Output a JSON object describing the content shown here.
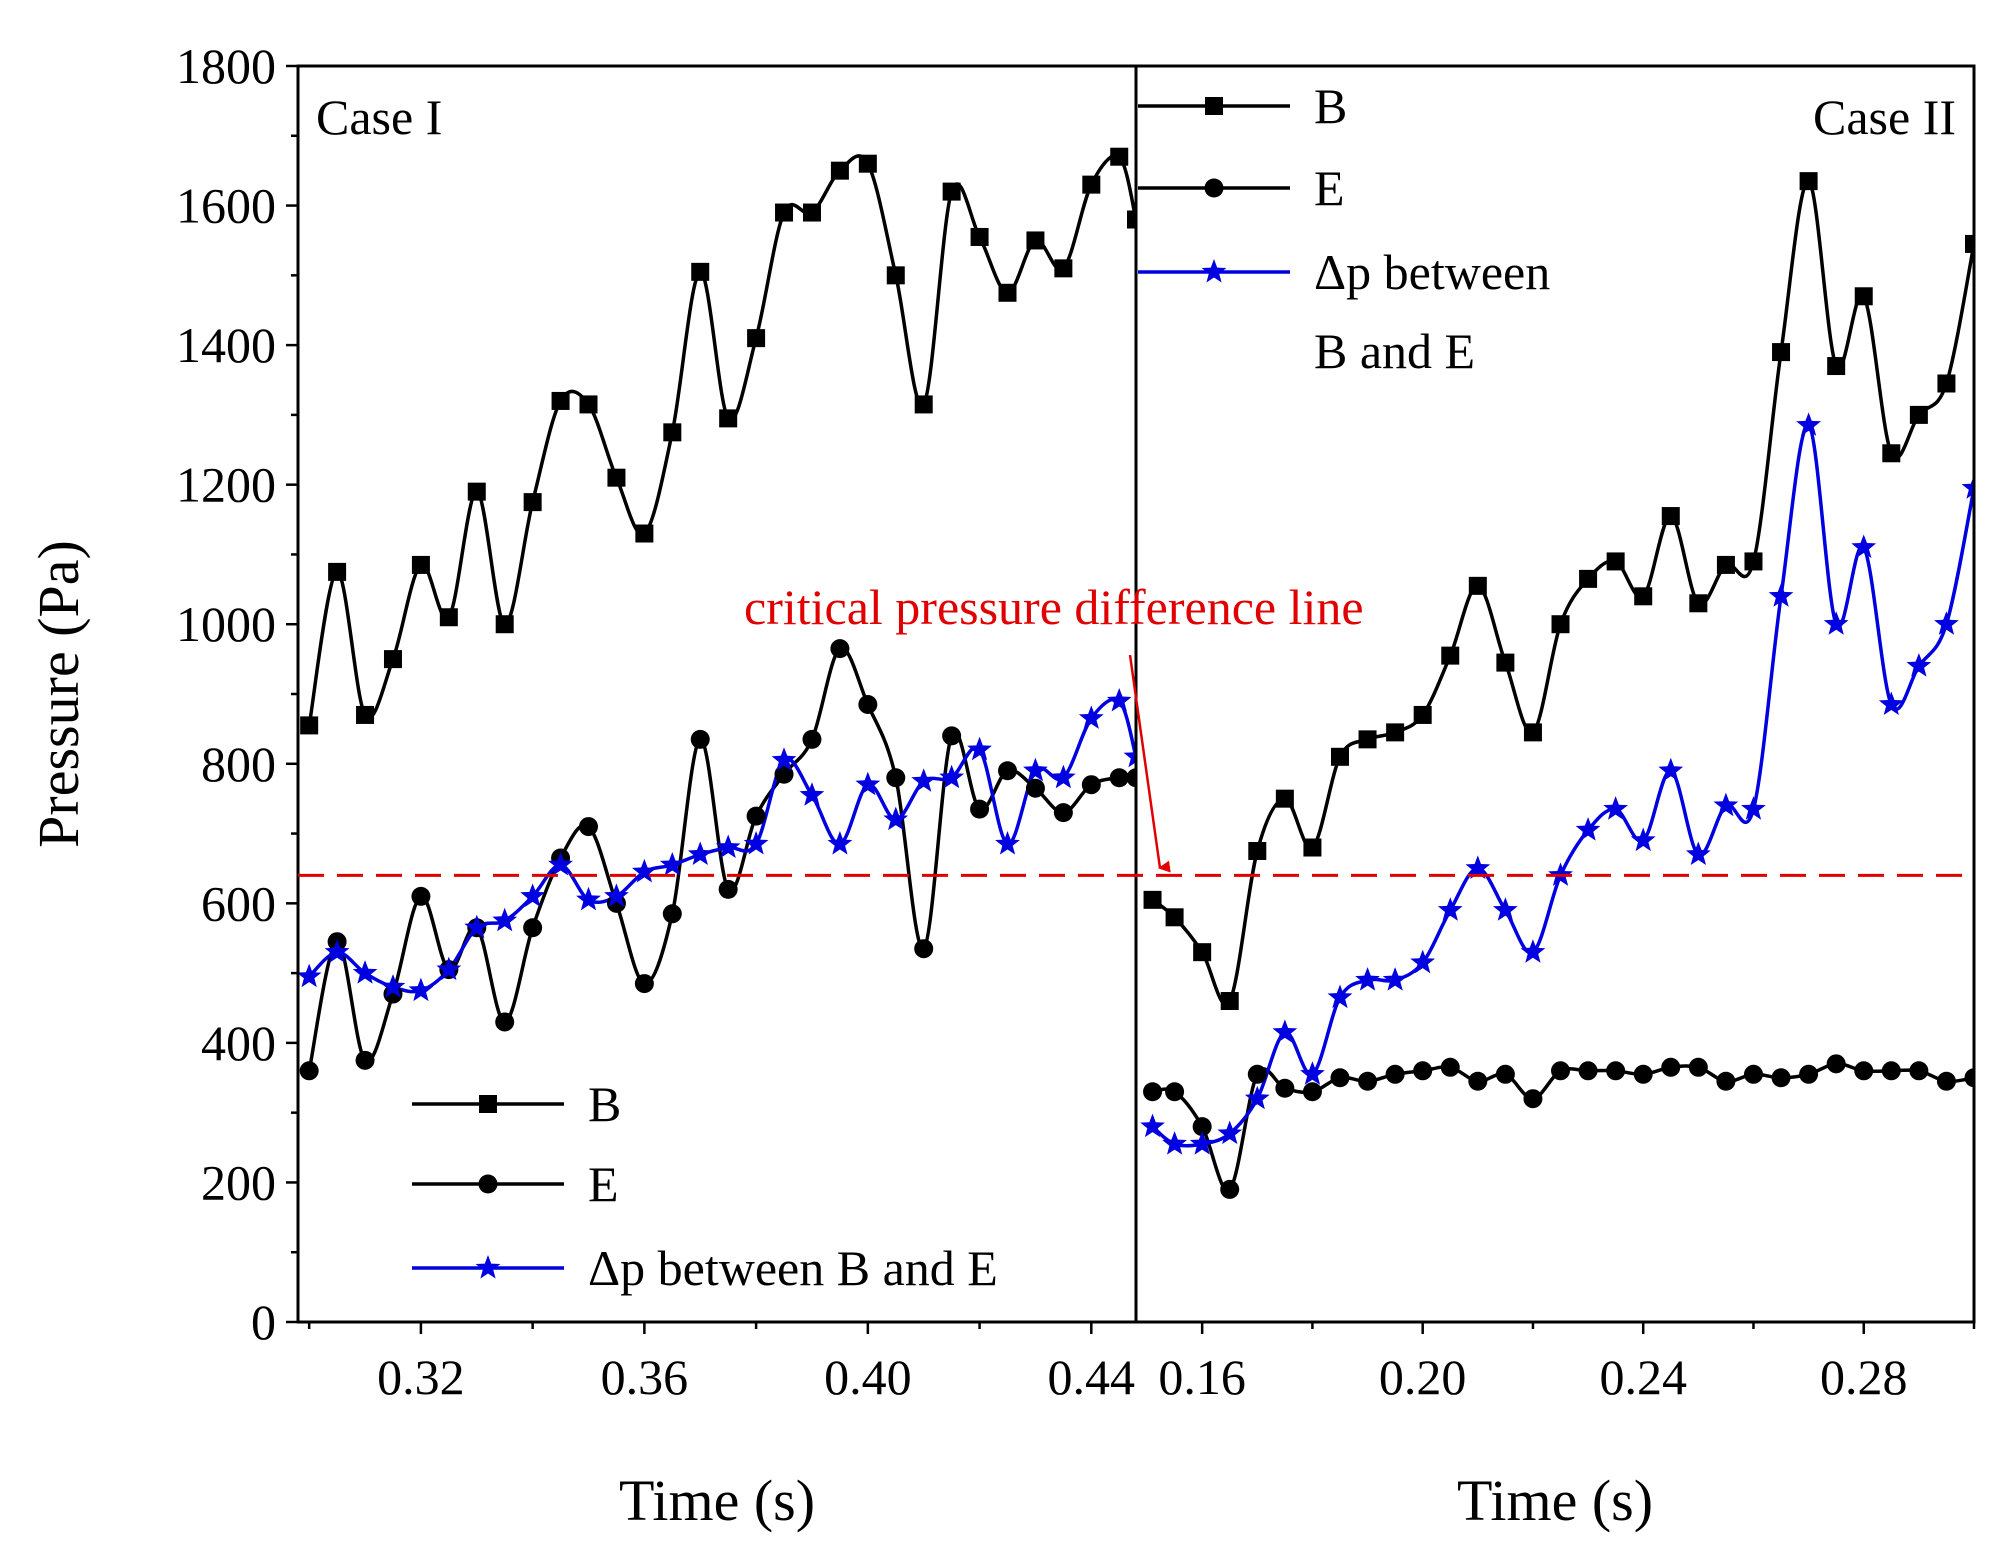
{
  "chart_data": {
    "type": "line",
    "ylabel": "Pressure (Pa)",
    "ylim": [
      0,
      1800
    ],
    "y_ticks": [
      "0",
      "200",
      "400",
      "600",
      "800",
      "1000",
      "1200",
      "1400",
      "1600",
      "1800"
    ],
    "colors": {
      "B": "#000000",
      "E": "#000000",
      "dp": "#0000e0",
      "critical": "#e00000",
      "annotation": "#e00000"
    },
    "critical_line": {
      "value": 640,
      "label": "critical pressure difference line",
      "style": "dashed"
    },
    "panels": [
      {
        "name": "Case I",
        "xlabel": "Time (s)",
        "xlim": [
          0.298,
          0.448
        ],
        "x_ticks": [
          "0.32",
          "0.36",
          "0.40",
          "0.44"
        ],
        "x_tick_values": [
          0.32,
          0.36,
          0.4,
          0.44
        ],
        "legend": {
          "placement": "bottom-left",
          "entries": [
            "B",
            "E",
            "Δp between B and E"
          ]
        },
        "series": [
          {
            "name": "B",
            "marker": "square",
            "color": "#000000",
            "points": [
              [
                0.3,
                855
              ],
              [
                0.305,
                1075
              ],
              [
                0.31,
                870
              ],
              [
                0.315,
                950
              ],
              [
                0.32,
                1085
              ],
              [
                0.325,
                1010
              ],
              [
                0.33,
                1190
              ],
              [
                0.335,
                1000
              ],
              [
                0.34,
                1175
              ],
              [
                0.345,
                1320
              ],
              [
                0.35,
                1315
              ],
              [
                0.355,
                1210
              ],
              [
                0.36,
                1130
              ],
              [
                0.365,
                1275
              ],
              [
                0.37,
                1505
              ],
              [
                0.375,
                1295
              ],
              [
                0.38,
                1410
              ],
              [
                0.385,
                1590
              ],
              [
                0.39,
                1590
              ],
              [
                0.395,
                1650
              ],
              [
                0.4,
                1660
              ],
              [
                0.405,
                1500
              ],
              [
                0.41,
                1315
              ],
              [
                0.415,
                1620
              ],
              [
                0.42,
                1555
              ],
              [
                0.425,
                1475
              ],
              [
                0.43,
                1550
              ],
              [
                0.435,
                1510
              ],
              [
                0.44,
                1630
              ],
              [
                0.445,
                1670
              ],
              [
                0.448,
                1580
              ]
            ]
          },
          {
            "name": "E",
            "marker": "circle",
            "color": "#000000",
            "points": [
              [
                0.3,
                360
              ],
              [
                0.305,
                545
              ],
              [
                0.31,
                375
              ],
              [
                0.315,
                470
              ],
              [
                0.32,
                610
              ],
              [
                0.325,
                505
              ],
              [
                0.33,
                565
              ],
              [
                0.335,
                430
              ],
              [
                0.34,
                565
              ],
              [
                0.345,
                665
              ],
              [
                0.35,
                710
              ],
              [
                0.355,
                600
              ],
              [
                0.36,
                485
              ],
              [
                0.365,
                585
              ],
              [
                0.37,
                835
              ],
              [
                0.375,
                620
              ],
              [
                0.38,
                725
              ],
              [
                0.385,
                785
              ],
              [
                0.39,
                835
              ],
              [
                0.395,
                965
              ],
              [
                0.4,
                885
              ],
              [
                0.405,
                780
              ],
              [
                0.41,
                535
              ],
              [
                0.415,
                840
              ],
              [
                0.42,
                735
              ],
              [
                0.425,
                790
              ],
              [
                0.43,
                765
              ],
              [
                0.435,
                730
              ],
              [
                0.44,
                770
              ],
              [
                0.445,
                780
              ],
              [
                0.448,
                780
              ]
            ]
          },
          {
            "name": "Δp between B and E",
            "marker": "star",
            "color": "#0000e0",
            "points": [
              [
                0.3,
                495
              ],
              [
                0.305,
                530
              ],
              [
                0.31,
                500
              ],
              [
                0.315,
                480
              ],
              [
                0.32,
                475
              ],
              [
                0.325,
                505
              ],
              [
                0.33,
                565
              ],
              [
                0.335,
                575
              ],
              [
                0.34,
                610
              ],
              [
                0.345,
                655
              ],
              [
                0.35,
                605
              ],
              [
                0.355,
                610
              ],
              [
                0.36,
                645
              ],
              [
                0.365,
                655
              ],
              [
                0.37,
                670
              ],
              [
                0.375,
                680
              ],
              [
                0.38,
                685
              ],
              [
                0.385,
                805
              ],
              [
                0.39,
                755
              ],
              [
                0.395,
                685
              ],
              [
                0.4,
                770
              ],
              [
                0.405,
                720
              ],
              [
                0.41,
                775
              ],
              [
                0.415,
                780
              ],
              [
                0.42,
                820
              ],
              [
                0.425,
                685
              ],
              [
                0.43,
                790
              ],
              [
                0.435,
                780
              ],
              [
                0.44,
                865
              ],
              [
                0.445,
                890
              ],
              [
                0.448,
                810
              ]
            ]
          }
        ]
      },
      {
        "name": "Case II",
        "xlabel": "Time (s)",
        "xlim": [
          0.148,
          0.3
        ],
        "x_ticks": [
          "0.16",
          "0.20",
          "0.24",
          "0.28"
        ],
        "x_tick_values": [
          0.16,
          0.2,
          0.24,
          0.28
        ],
        "legend": {
          "placement": "top-left",
          "entries": [
            "B",
            "E",
            "Δp between",
            "B and E"
          ]
        },
        "series": [
          {
            "name": "B",
            "marker": "square",
            "color": "#000000",
            "points": [
              [
                0.151,
                605
              ],
              [
                0.155,
                580
              ],
              [
                0.16,
                530
              ],
              [
                0.165,
                460
              ],
              [
                0.17,
                675
              ],
              [
                0.175,
                750
              ],
              [
                0.18,
                680
              ],
              [
                0.185,
                810
              ],
              [
                0.19,
                835
              ],
              [
                0.195,
                845
              ],
              [
                0.2,
                870
              ],
              [
                0.205,
                955
              ],
              [
                0.21,
                1055
              ],
              [
                0.215,
                945
              ],
              [
                0.22,
                845
              ],
              [
                0.225,
                1000
              ],
              [
                0.23,
                1065
              ],
              [
                0.235,
                1090
              ],
              [
                0.24,
                1040
              ],
              [
                0.245,
                1155
              ],
              [
                0.25,
                1030
              ],
              [
                0.255,
                1085
              ],
              [
                0.26,
                1090
              ],
              [
                0.265,
                1390
              ],
              [
                0.27,
                1635
              ],
              [
                0.275,
                1370
              ],
              [
                0.28,
                1470
              ],
              [
                0.285,
                1245
              ],
              [
                0.29,
                1300
              ],
              [
                0.295,
                1345
              ],
              [
                0.3,
                1545
              ]
            ]
          },
          {
            "name": "E",
            "marker": "circle",
            "color": "#000000",
            "points": [
              [
                0.151,
                330
              ],
              [
                0.155,
                330
              ],
              [
                0.16,
                280
              ],
              [
                0.165,
                190
              ],
              [
                0.17,
                355
              ],
              [
                0.175,
                335
              ],
              [
                0.18,
                330
              ],
              [
                0.185,
                350
              ],
              [
                0.19,
                345
              ],
              [
                0.195,
                355
              ],
              [
                0.2,
                360
              ],
              [
                0.205,
                365
              ],
              [
                0.21,
                345
              ],
              [
                0.215,
                355
              ],
              [
                0.22,
                320
              ],
              [
                0.225,
                360
              ],
              [
                0.23,
                360
              ],
              [
                0.235,
                360
              ],
              [
                0.24,
                355
              ],
              [
                0.245,
                365
              ],
              [
                0.25,
                365
              ],
              [
                0.255,
                345
              ],
              [
                0.26,
                355
              ],
              [
                0.265,
                350
              ],
              [
                0.27,
                355
              ],
              [
                0.275,
                370
              ],
              [
                0.28,
                360
              ],
              [
                0.285,
                360
              ],
              [
                0.29,
                360
              ],
              [
                0.295,
                345
              ],
              [
                0.3,
                350
              ]
            ]
          },
          {
            "name": "Δp between B and E",
            "marker": "star",
            "color": "#0000e0",
            "points": [
              [
                0.151,
                280
              ],
              [
                0.155,
                255
              ],
              [
                0.16,
                255
              ],
              [
                0.165,
                270
              ],
              [
                0.17,
                320
              ],
              [
                0.175,
                415
              ],
              [
                0.18,
                355
              ],
              [
                0.185,
                465
              ],
              [
                0.19,
                490
              ],
              [
                0.195,
                490
              ],
              [
                0.2,
                515
              ],
              [
                0.205,
                590
              ],
              [
                0.21,
                650
              ],
              [
                0.215,
                590
              ],
              [
                0.22,
                530
              ],
              [
                0.225,
                640
              ],
              [
                0.23,
                705
              ],
              [
                0.235,
                735
              ],
              [
                0.24,
                690
              ],
              [
                0.245,
                790
              ],
              [
                0.25,
                670
              ],
              [
                0.255,
                740
              ],
              [
                0.26,
                735
              ],
              [
                0.265,
                1040
              ],
              [
                0.27,
                1285
              ],
              [
                0.275,
                1000
              ],
              [
                0.28,
                1110
              ],
              [
                0.285,
                885
              ],
              [
                0.29,
                940
              ],
              [
                0.295,
                1000
              ],
              [
                0.3,
                1195
              ]
            ]
          }
        ]
      }
    ]
  }
}
